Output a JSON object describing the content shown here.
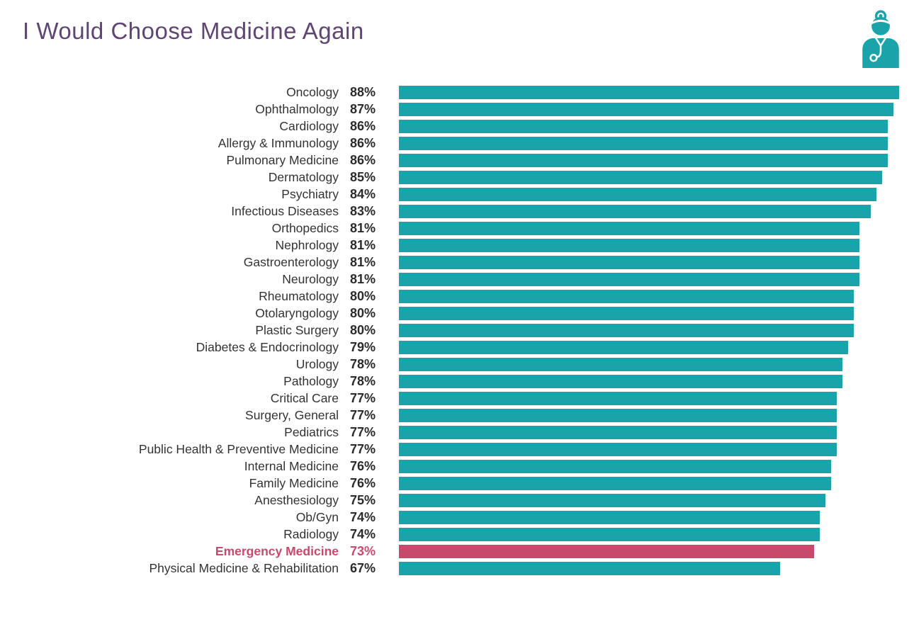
{
  "title": "I Would Choose Medicine Again",
  "icon": "doctor-with-stethoscope-icon",
  "colors": {
    "teal": "#1AA3A8",
    "pink": "#C74A6C",
    "title_purple": "#5E4573",
    "label_gray": "#333333",
    "value_dark": "#2B2B2B"
  },
  "chart_data": {
    "type": "bar",
    "orientation": "horizontal",
    "title": "I Would Choose Medicine Again",
    "xlabel": "",
    "ylabel": "",
    "xlim": [
      0,
      88
    ],
    "grid": false,
    "legend": false,
    "value_suffix": "%",
    "categories": [
      "Oncology",
      "Ophthalmology",
      "Cardiology",
      "Allergy & Immunology",
      "Pulmonary Medicine",
      "Dermatology",
      "Psychiatry",
      "Infectious Diseases",
      "Orthopedics",
      "Nephrology",
      "Gastroenterology",
      "Neurology",
      "Rheumatology",
      "Otolaryngology",
      "Plastic Surgery",
      "Diabetes & Endocrinology",
      "Urology",
      "Pathology",
      "Critical Care",
      "Surgery, General",
      "Pediatrics",
      "Public Health & Preventive Medicine",
      "Internal Medicine",
      "Family Medicine",
      "Anesthesiology",
      "Ob/Gyn",
      "Radiology",
      "Emergency Medicine",
      "Physical Medicine & Rehabilitation"
    ],
    "values": [
      88,
      87,
      86,
      86,
      86,
      85,
      84,
      83,
      81,
      81,
      81,
      81,
      80,
      80,
      80,
      79,
      78,
      78,
      77,
      77,
      77,
      77,
      76,
      76,
      75,
      74,
      74,
      73,
      67
    ],
    "highlight_category": "Emergency Medicine",
    "highlight_index": 27,
    "bar_color": "#1AA3A8",
    "highlight_color": "#C74A6C"
  }
}
